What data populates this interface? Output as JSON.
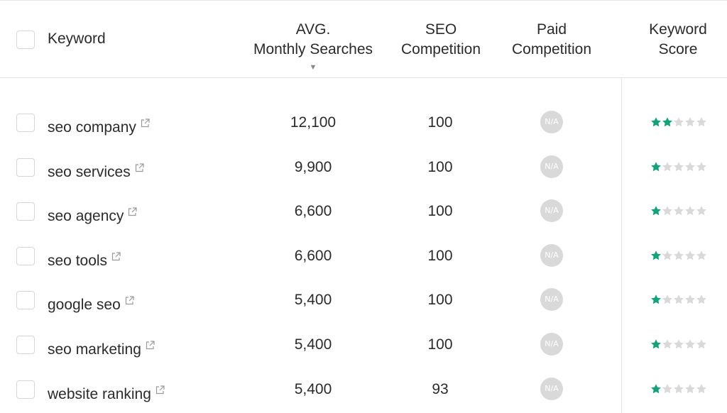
{
  "header": {
    "keyword_label": "Keyword",
    "searches_label_line1": "AVG.",
    "searches_label_line2": "Monthly Searches",
    "seo_label_line1": "SEO",
    "seo_label_line2": "Competition",
    "paid_label_line1": "Paid",
    "paid_label_line2": "Competition",
    "score_label_line1": "Keyword",
    "score_label_line2": "Score",
    "sort_icon": "sort-desc-icon"
  },
  "colors": {
    "star_filled": "#12a37a",
    "star_empty": "#d9d9d9",
    "na_badge": "#d9d9d9"
  },
  "rows": [
    {
      "keyword": "seo company",
      "searches": "12,100",
      "seo_competition": "100",
      "paid_competition": "N/A",
      "score": 2
    },
    {
      "keyword": "seo services",
      "searches": "9,900",
      "seo_competition": "100",
      "paid_competition": "N/A",
      "score": 1
    },
    {
      "keyword": "seo agency",
      "searches": "6,600",
      "seo_competition": "100",
      "paid_competition": "N/A",
      "score": 1
    },
    {
      "keyword": "seo tools",
      "searches": "6,600",
      "seo_competition": "100",
      "paid_competition": "N/A",
      "score": 1
    },
    {
      "keyword": "google seo",
      "searches": "5,400",
      "seo_competition": "100",
      "paid_competition": "N/A",
      "score": 1
    },
    {
      "keyword": "seo marketing",
      "searches": "5,400",
      "seo_competition": "100",
      "paid_competition": "N/A",
      "score": 1
    },
    {
      "keyword": "website ranking",
      "searches": "5,400",
      "seo_competition": "93",
      "paid_competition": "N/A",
      "score": 1
    }
  ],
  "max_score": 5
}
